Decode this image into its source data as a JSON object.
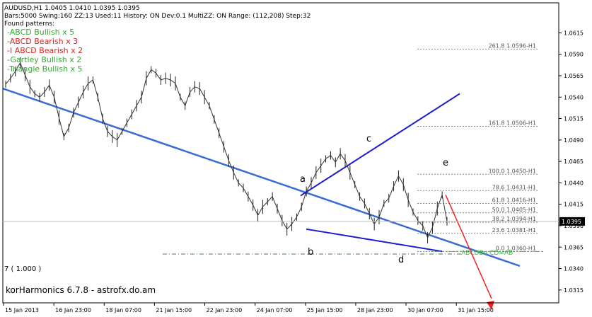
{
  "header": {
    "line1": "AUDUSD,H1  1.0405 1.0410 1.0395 1.0395",
    "line2": "Bars:5000  Swing:160  ZZ:13  Used:11  History: ON Dev:0.1  MultiZZ: ON  Range: (112,208)  Step:32",
    "found_label": "Found patterns:"
  },
  "patterns": [
    {
      "text": "-ABCD Bullish x 5",
      "color": "#33aa33"
    },
    {
      "text": "-ABCD Bearish x 3",
      "color": "#dd2222"
    },
    {
      "text": "-I ABCD Bearish x 2",
      "color": "#dd2222"
    },
    {
      "text": "-Gartley Bullish x 2",
      "color": "#33aa33"
    },
    {
      "text": "-Triangle Bullish x 5",
      "color": "#33aa33"
    }
  ],
  "footer": "korHarmonics 6.7.8 - astrofx.do.am",
  "indicator_label": "7 ( 1.000 )",
  "current_price": "1.0395",
  "point_labels": {
    "a": "a",
    "b": "b",
    "c": "c",
    "d": "d",
    "e": "e"
  },
  "projection_label": "ABCDBu CD=AB",
  "chart_data": {
    "type": "line",
    "symbol": "AUDUSD",
    "timeframe": "H1",
    "ylim": [
      1.03,
      1.065
    ],
    "y_ticks": [
      "1.0615",
      "1.0590",
      "1.0565",
      "1.0540",
      "1.0515",
      "1.0490",
      "1.0465",
      "1.0440",
      "1.0415",
      "1.0390",
      "1.0365",
      "1.0340",
      "1.0315"
    ],
    "x_ticks": [
      "15 Jan 2013",
      "16 Jan 23:00",
      "18 Jan 07:00",
      "21 Jan 15:00",
      "22 Jan 23:00",
      "24 Jan 07:00",
      "25 Jan 15:00",
      "28 Jan 23:00",
      "30 Jan 07:00",
      "31 Jan 15:00"
    ],
    "price_series": [
      1.0555,
      1.0562,
      1.057,
      1.058,
      1.0566,
      1.0552,
      1.0544,
      1.054,
      1.0546,
      1.0554,
      1.054,
      1.0516,
      1.0494,
      1.0504,
      1.0522,
      1.0534,
      1.0546,
      1.0556,
      1.056,
      1.054,
      1.0515,
      1.05,
      1.0494,
      1.049,
      1.05,
      1.051,
      1.052,
      1.053,
      1.054,
      1.0562,
      1.0572,
      1.0568,
      1.056,
      1.0562,
      1.056,
      1.0556,
      1.054,
      1.053,
      1.0546,
      1.0552,
      1.055,
      1.054,
      1.053,
      1.0514,
      1.0498,
      1.0482,
      1.0466,
      1.0452,
      1.044,
      1.0434,
      1.0424,
      1.0414,
      1.0402,
      1.0412,
      1.0418,
      1.0424,
      1.041,
      1.0396,
      1.0386,
      1.0392,
      1.04,
      1.0412,
      1.043,
      1.044,
      1.0452,
      1.046,
      1.0468,
      1.0472,
      1.0464,
      1.0474,
      1.0466,
      1.0452,
      1.0438,
      1.0424,
      1.0416,
      1.0404,
      1.0392,
      1.04,
      1.0416,
      1.0422,
      1.0436,
      1.0448,
      1.0438,
      1.042,
      1.0406,
      1.0396,
      1.039,
      1.0376,
      1.0388,
      1.041,
      1.0426,
      1.0395
    ],
    "fib_levels": [
      {
        "label": "261.8 1.0596-H1",
        "value": 1.0596
      },
      {
        "label": "161.8 1.0506-H1",
        "value": 1.0506
      },
      {
        "label": "100.0 1.0450-H1",
        "value": 1.045
      },
      {
        "label": "78.6 1.0431-H1",
        "value": 1.0431
      },
      {
        "label": "61.8 1.0416-H1",
        "value": 1.0416
      },
      {
        "label": "50.0 1.0405-H1",
        "value": 1.0405
      },
      {
        "label": "38.2 1.0394-H1",
        "value": 1.0394
      },
      {
        "label": "23.6 1.0381-H1",
        "value": 1.0381
      },
      {
        "label": "0.0 1.0360-H1",
        "value": 1.036
      }
    ],
    "colors": {
      "trend_line": "#3a6bd6",
      "pattern_line": "#1a1ad0",
      "projection": "#ee2222",
      "found_green": "#33aa33",
      "found_red": "#dd2222"
    }
  }
}
